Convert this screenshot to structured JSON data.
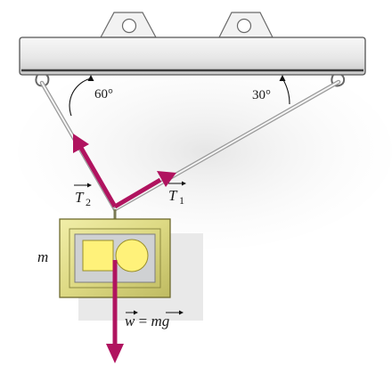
{
  "angles": {
    "left_cable": "60°",
    "right_cable": "30°"
  },
  "tension_labels": {
    "t2": "T",
    "t2_sub": "2",
    "t1": "T",
    "t1_sub": "1"
  },
  "mass_label": "m",
  "weight_label": {
    "lhs": "w",
    "equals": " = ",
    "mass": "m",
    "gravity": "g"
  },
  "colors": {
    "force_vector": "#b0135f",
    "cable": "#cfcfcf",
    "beam_face": "#ebebeb",
    "picture_frame": "#e2de88",
    "picture_inner": "#fff27a"
  },
  "icons": {
    "beam": "ceiling-beam",
    "frame": "hanging-picture-frame"
  }
}
